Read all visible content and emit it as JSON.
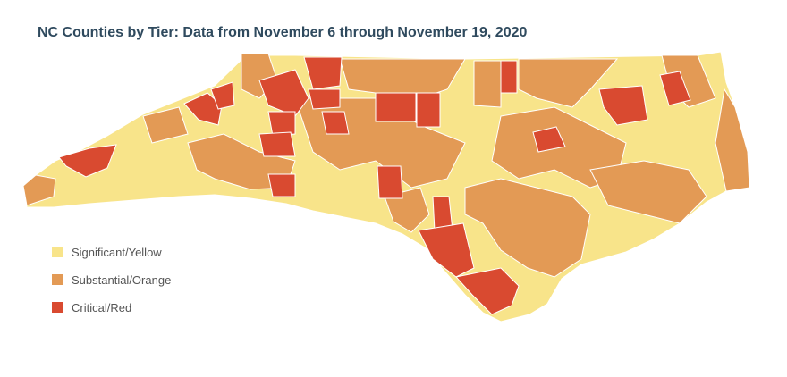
{
  "title": "NC Counties by Tier: Data from November 6 through November 19, 2020",
  "legend": [
    {
      "label": "Significant/Yellow",
      "color": "#f8e48a"
    },
    {
      "label": "Substantial/Orange",
      "color": "#e39a55"
    },
    {
      "label": "Critical/Red",
      "color": "#d94a30"
    }
  ],
  "colors": {
    "yellow": "#f8e48a",
    "orange": "#e39a55",
    "red": "#d94a30",
    "border": "#ffffff"
  }
}
